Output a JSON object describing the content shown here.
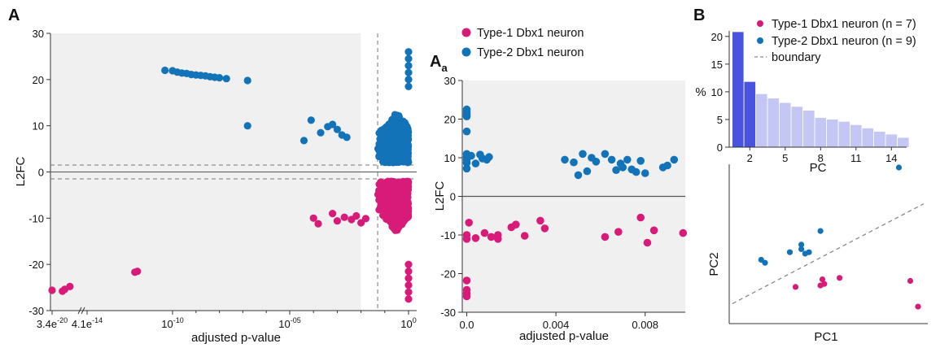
{
  "colors": {
    "type1": "#d81b78",
    "type2": "#1273b8",
    "plot_bg": "#f0f0f0",
    "scree_dark": "#4a52e0",
    "scree_light": "#c4c6f4"
  },
  "panels": {
    "A": "A",
    "Aa_main": "A",
    "Aa_sub": "a",
    "B": "B"
  },
  "legend_A": [
    "Type-1 Dbx1 neuron",
    "Type-2 Dbx1 neuron"
  ],
  "legend_B": [
    "Type-1 Dbx1 neuron (n = 7)",
    "Type-2 Dbx1 neuron (n = 9)",
    "boundary"
  ],
  "chart_data": [
    {
      "id": "A",
      "type": "scatter",
      "xlabel": "adjusted p-value",
      "ylabel": "L2FC",
      "ylim": [
        -30,
        30
      ],
      "yticks": [
        "30",
        "20",
        "10",
        "0",
        "-10",
        "-20",
        "-30"
      ],
      "xticks": [
        {
          "base": "3.4e",
          "exp": "-20"
        },
        {
          "base": "4.1e",
          "exp": "-14"
        },
        {
          "base": "10",
          "exp": "-10"
        },
        {
          "base": "10",
          "exp": "-05"
        },
        {
          "base": "10",
          "exp": "0"
        }
      ],
      "x_scale": "log",
      "log10_xlim": [
        -19.5,
        0
      ],
      "threshold_lines": {
        "l2fc": [
          1.5,
          -1.5
        ],
        "log10_p": -1.3
      },
      "series": [
        {
          "name": "Type-2 Dbx1 neuron",
          "points_log10p_l2fc": [
            [
              -10.3,
              22.0
            ],
            [
              -10.0,
              21.9
            ],
            [
              -9.8,
              21.6
            ],
            [
              -9.6,
              21.4
            ],
            [
              -9.4,
              21.3
            ],
            [
              -9.2,
              21.1
            ],
            [
              -9.0,
              21.0
            ],
            [
              -8.8,
              20.9
            ],
            [
              -8.6,
              20.8
            ],
            [
              -8.4,
              20.6
            ],
            [
              -8.2,
              20.5
            ],
            [
              -8.0,
              20.4
            ],
            [
              -7.7,
              20.2
            ],
            [
              -6.8,
              19.8
            ],
            [
              -6.8,
              10.0
            ],
            [
              -4.4,
              6.8
            ],
            [
              -4.1,
              11.2
            ],
            [
              -3.7,
              8.5
            ],
            [
              -3.4,
              9.8
            ],
            [
              -3.2,
              10.3
            ],
            [
              -3.0,
              9.2
            ],
            [
              -2.8,
              8.0
            ],
            [
              -2.6,
              7.5
            ],
            [
              0,
              26
            ],
            [
              0,
              24.5
            ],
            [
              0,
              23
            ],
            [
              0,
              21.5
            ],
            [
              0,
              20
            ],
            [
              0,
              18.5
            ]
          ]
        },
        {
          "name": "Type-1 Dbx1 neuron",
          "points_log10p_l2fc": [
            [
              -19.5,
              -25.6
            ],
            [
              -17.7,
              -25.8
            ],
            [
              -17.3,
              -25.4
            ],
            [
              -16.4,
              -24.8
            ],
            [
              -11.5,
              -21.7
            ],
            [
              -11.4,
              -21.5
            ],
            [
              -4.0,
              -10.0
            ],
            [
              -3.8,
              -11.2
            ],
            [
              -3.2,
              -9.0
            ],
            [
              -3.0,
              -10.6
            ],
            [
              -2.7,
              -9.8
            ],
            [
              -2.4,
              -10.3
            ],
            [
              -2.2,
              -9.5
            ],
            [
              -2.0,
              -11.0
            ],
            [
              -1.8,
              -10.1
            ],
            [
              0,
              -20
            ],
            [
              0,
              -21.5
            ],
            [
              0,
              -23
            ],
            [
              0,
              -24.5
            ],
            [
              0,
              -26
            ],
            [
              0,
              -27.5
            ]
          ]
        }
      ]
    },
    {
      "id": "Aa",
      "type": "scatter",
      "xlabel": "adjusted p-value",
      "ylabel": "L2FC",
      "xlim": [
        -0.0002,
        0.0098
      ],
      "ylim": [
        -30,
        30
      ],
      "xticks": [
        "0.0",
        "0.004",
        "0.008"
      ],
      "yticks": [
        "30",
        "20",
        "10",
        "0",
        "-10",
        "-20",
        "-30"
      ],
      "series": [
        {
          "name": "Type-2 Dbx1 neuron",
          "points": [
            [
              0.0,
              22.5
            ],
            [
              0.0,
              22.0
            ],
            [
              0.0,
              21.5
            ],
            [
              0.0,
              21.0
            ],
            [
              0.0,
              20.7
            ],
            [
              0.0,
              16.8
            ],
            [
              0.0,
              11.0
            ],
            [
              0.0,
              10.2
            ],
            [
              0.0,
              9.5
            ],
            [
              0.0,
              8.7
            ],
            [
              0.0,
              7.2
            ],
            [
              0.0002,
              10.5
            ],
            [
              0.0004,
              8.5
            ],
            [
              0.0006,
              10.8
            ],
            [
              0.0007,
              9.8
            ],
            [
              0.0009,
              9.5
            ],
            [
              0.001,
              10.2
            ],
            [
              0.0044,
              9.5
            ],
            [
              0.0048,
              8.8
            ],
            [
              0.005,
              5.5
            ],
            [
              0.0052,
              11.0
            ],
            [
              0.0054,
              6.5
            ],
            [
              0.0056,
              10.0
            ],
            [
              0.0058,
              9.0
            ],
            [
              0.0062,
              11.0
            ],
            [
              0.0065,
              9.5
            ],
            [
              0.0067,
              6.8
            ],
            [
              0.0069,
              8.5
            ],
            [
              0.007,
              7.5
            ],
            [
              0.0072,
              9.5
            ],
            [
              0.0074,
              7.0
            ],
            [
              0.0076,
              6.3
            ],
            [
              0.0078,
              9.2
            ],
            [
              0.008,
              6.0
            ],
            [
              0.0088,
              7.5
            ],
            [
              0.009,
              8.0
            ],
            [
              0.0093,
              9.5
            ]
          ]
        },
        {
          "name": "Type-1 Dbx1 neuron",
          "points": [
            [
              0.0,
              -21.8
            ],
            [
              0.0,
              -24.2
            ],
            [
              0.0,
              -25.2
            ],
            [
              0.0,
              -25.9
            ],
            [
              0.0,
              -10.0
            ],
            [
              0.0,
              -11.0
            ],
            [
              0.0001,
              -6.8
            ],
            [
              0.0004,
              -10.8
            ],
            [
              0.0008,
              -9.5
            ],
            [
              0.0011,
              -10.5
            ],
            [
              0.0014,
              -10.0
            ],
            [
              0.0014,
              -11.0
            ],
            [
              0.002,
              -8.0
            ],
            [
              0.0022,
              -7.3
            ],
            [
              0.0026,
              -10.2
            ],
            [
              0.0033,
              -6.3
            ],
            [
              0.0035,
              -8.3
            ],
            [
              0.0062,
              -10.5
            ],
            [
              0.0068,
              -9.2
            ],
            [
              0.0078,
              -5.5
            ],
            [
              0.0081,
              -12.0
            ],
            [
              0.0084,
              -8.8
            ],
            [
              0.0097,
              -9.5
            ]
          ]
        }
      ]
    },
    {
      "id": "B-scree",
      "type": "bar",
      "xlabel": "PC",
      "ylabel": "%",
      "ylim": [
        0,
        21
      ],
      "yticks": [
        "20",
        "15",
        "10",
        "5",
        "0"
      ],
      "xtick_labels": [
        "2",
        "5",
        "8",
        "11",
        "14"
      ],
      "categories": [
        1,
        2,
        3,
        4,
        5,
        6,
        7,
        8,
        9,
        10,
        11,
        12,
        13,
        14,
        15
      ],
      "values": [
        20.8,
        11.8,
        9.6,
        8.8,
        8.0,
        7.3,
        6.6,
        5.3,
        5.0,
        4.6,
        4.0,
        3.4,
        2.8,
        2.3,
        1.7
      ],
      "highlighted": [
        1,
        2
      ]
    },
    {
      "id": "B-pca",
      "type": "scatter",
      "xlabel": "PC1",
      "ylabel": "PC2",
      "xlim": [
        0,
        1
      ],
      "ylim": [
        0,
        1
      ],
      "boundary": [
        [
          0.0,
          0.1
        ],
        [
          1.0,
          0.76
        ]
      ],
      "series": [
        {
          "name": "Type-2 Dbx1 neuron (n = 9)",
          "points": [
            [
              0.87,
              1.0
            ],
            [
              0.46,
              0.58
            ],
            [
              0.36,
              0.49
            ],
            [
              0.36,
              0.46
            ],
            [
              0.3,
              0.44
            ],
            [
              0.38,
              0.43
            ],
            [
              0.4,
              0.44
            ],
            [
              0.15,
              0.39
            ],
            [
              0.17,
              0.37
            ]
          ]
        },
        {
          "name": "Type-1 Dbx1 neuron (n = 7)",
          "points": [
            [
              0.33,
              0.21
            ],
            [
              0.47,
              0.26
            ],
            [
              0.48,
              0.23
            ],
            [
              0.46,
              0.22
            ],
            [
              0.56,
              0.27
            ],
            [
              0.93,
              0.25
            ],
            [
              0.97,
              0.08
            ]
          ]
        }
      ]
    }
  ]
}
